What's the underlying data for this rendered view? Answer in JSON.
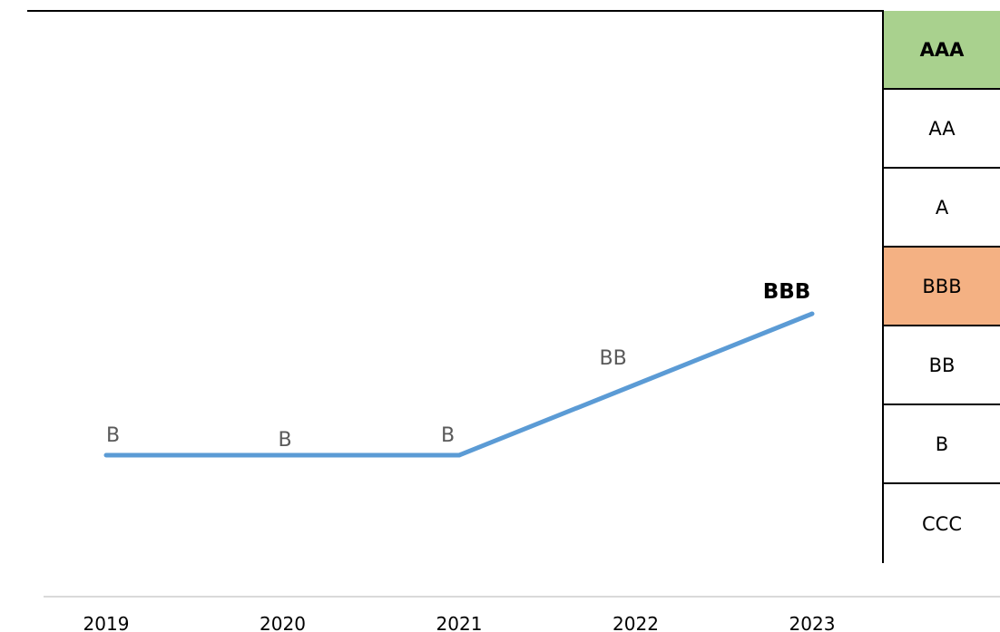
{
  "chart_data": {
    "type": "line",
    "title": "",
    "xlabel": "",
    "ylabel": "",
    "categories": [
      "2019",
      "2020",
      "2021",
      "2022",
      "2023"
    ],
    "y_scale": [
      "CCC",
      "B",
      "BB",
      "BBB",
      "A",
      "AA",
      "AAA"
    ],
    "series": [
      {
        "name": "",
        "values": [
          "B",
          "B",
          "B",
          "BB",
          "BBB"
        ],
        "color": "#5b9bd5"
      }
    ],
    "grid": false,
    "legend": "none"
  },
  "rating_scale": [
    {
      "label": "AAA",
      "color": "#a9d18e",
      "bold": true
    },
    {
      "label": "AA",
      "color": "#ffffff",
      "bold": false
    },
    {
      "label": "A",
      "color": "#ffffff",
      "bold": false
    },
    {
      "label": "BBB",
      "color": "#f4b183",
      "bold": false
    },
    {
      "label": "BB",
      "color": "#ffffff",
      "bold": false
    },
    {
      "label": "B",
      "color": "#ffffff",
      "bold": false
    },
    {
      "label": "CCC",
      "color": "#ffffff",
      "bold": false
    }
  ]
}
